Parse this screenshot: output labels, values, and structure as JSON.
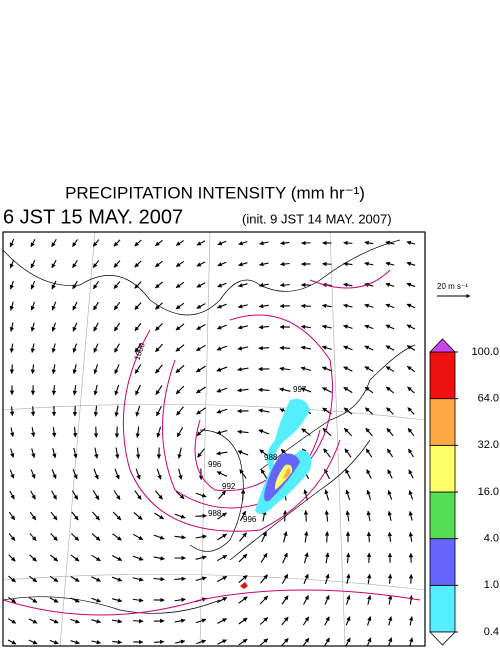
{
  "header": {
    "title": "PRECIPITATION INTENSITY (mm hr⁻¹)",
    "valid_time": "6 JST 15 MAY. 2007",
    "init_time": "(init. 9 JST 14 MAY. 2007)"
  },
  "wind_scale": {
    "label": "20 m s⁻¹"
  },
  "contour_labels": [
    "1000",
    "996",
    "992",
    "988",
    "996",
    "988",
    "997"
  ],
  "colorbar": {
    "ticks": [
      {
        "value": 0.4,
        "label": "0.4"
      },
      {
        "value": 1,
        "label": "1.0"
      },
      {
        "value": 4,
        "label": "4.0"
      },
      {
        "value": 16,
        "label": "16.0"
      },
      {
        "value": 32,
        "label": "32.0"
      },
      {
        "value": 64,
        "label": "64.0"
      },
      {
        "value": 100,
        "label": "100.0"
      }
    ],
    "colors": [
      "#55eeff",
      "#6666ff",
      "#55dd55",
      "#ffff66",
      "#ffaa44",
      "#ee1111"
    ],
    "under_color": "#ffffff",
    "over_color": "#cc44ee"
  }
}
